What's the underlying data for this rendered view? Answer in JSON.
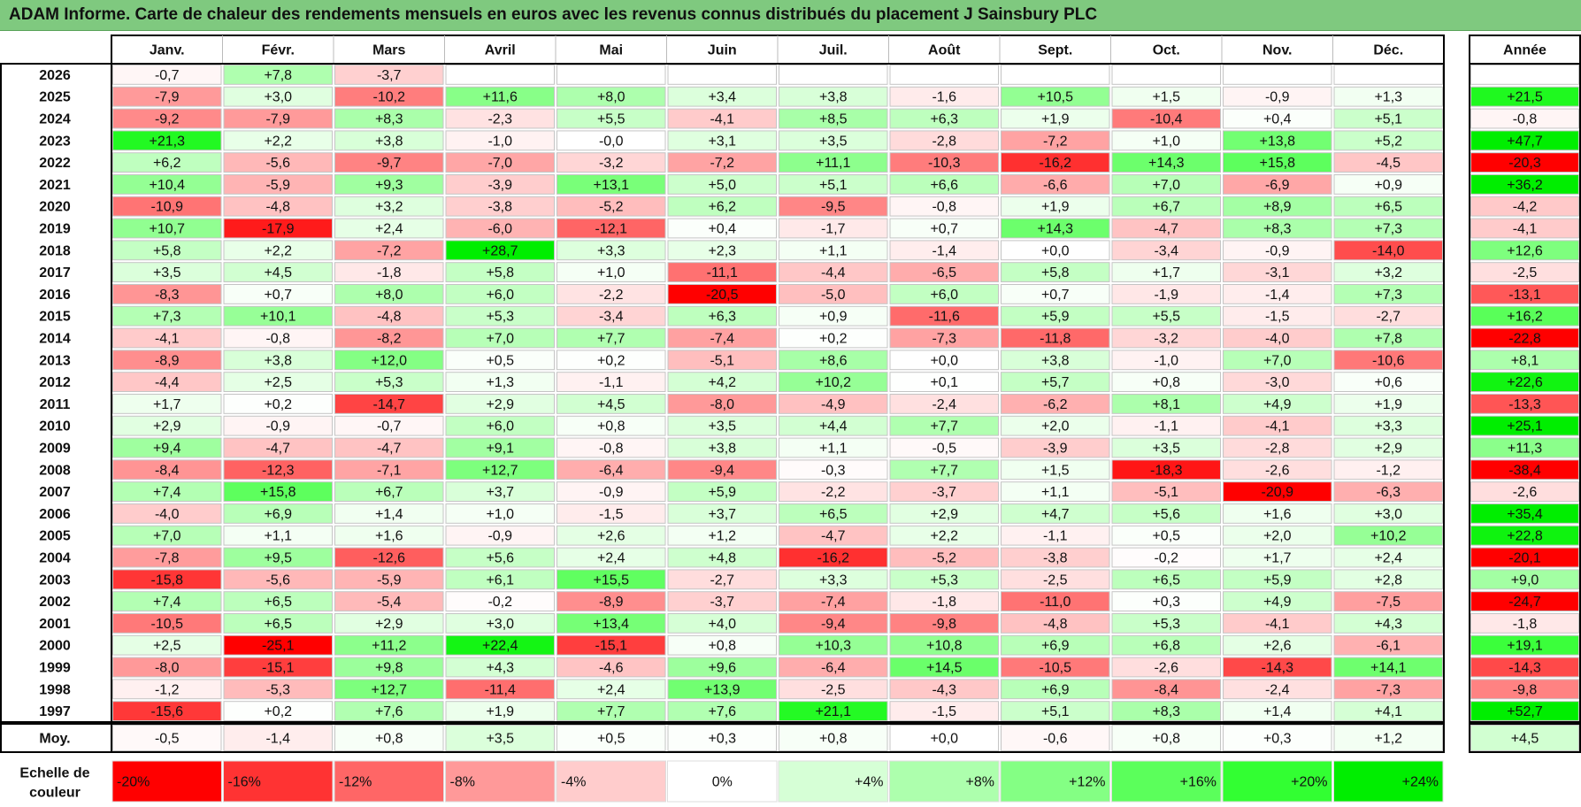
{
  "title": "ADAM Informe. Carte de chaleur des rendements mensuels en euros avec les revenus connus distribués du placement J Sainsbury PLC",
  "chart_data": {
    "type": "heatmap",
    "columns": [
      "Janv.",
      "Févr.",
      "Mars",
      "Avril",
      "Mai",
      "Juin",
      "Juil.",
      "Août",
      "Sept.",
      "Oct.",
      "Nov.",
      "Déc."
    ],
    "year_column": "Année",
    "rows": [
      {
        "year": "2026",
        "values": [
          "-0,7",
          "+7,8",
          "-3,7",
          null,
          null,
          null,
          null,
          null,
          null,
          null,
          null,
          null
        ],
        "annual": null
      },
      {
        "year": "2025",
        "values": [
          "-7,9",
          "+3,0",
          "-10,2",
          "+11,6",
          "+8,0",
          "+3,4",
          "+3,8",
          "-1,6",
          "+10,5",
          "+1,5",
          "-0,9",
          "+1,3"
        ],
        "annual": "+21,5"
      },
      {
        "year": "2024",
        "values": [
          "-9,2",
          "-7,9",
          "+8,3",
          "-2,3",
          "+5,5",
          "-4,1",
          "+8,5",
          "+6,3",
          "+1,9",
          "-10,4",
          "+0,4",
          "+5,1"
        ],
        "annual": "-0,8"
      },
      {
        "year": "2023",
        "values": [
          "+21,3",
          "+2,2",
          "+3,8",
          "-1,0",
          "-0,0",
          "+3,1",
          "+3,5",
          "-2,8",
          "-7,2",
          "+1,0",
          "+13,8",
          "+5,2"
        ],
        "annual": "+47,7"
      },
      {
        "year": "2022",
        "values": [
          "+6,2",
          "-5,6",
          "-9,7",
          "-7,0",
          "-3,2",
          "-7,2",
          "+11,1",
          "-10,3",
          "-16,2",
          "+14,3",
          "+15,8",
          "-4,5"
        ],
        "annual": "-20,3"
      },
      {
        "year": "2021",
        "values": [
          "+10,4",
          "-5,9",
          "+9,3",
          "-3,9",
          "+13,1",
          "+5,0",
          "+5,1",
          "+6,6",
          "-6,6",
          "+7,0",
          "-6,9",
          "+0,9"
        ],
        "annual": "+36,2"
      },
      {
        "year": "2020",
        "values": [
          "-10,9",
          "-4,8",
          "+3,2",
          "-3,8",
          "-5,2",
          "+6,2",
          "-9,5",
          "-0,8",
          "+1,9",
          "+6,7",
          "+8,9",
          "+6,5"
        ],
        "annual": "-4,2"
      },
      {
        "year": "2019",
        "values": [
          "+10,7",
          "-17,9",
          "+2,4",
          "-6,0",
          "-12,1",
          "+0,4",
          "-1,7",
          "+0,7",
          "+14,3",
          "-4,7",
          "+8,3",
          "+7,3"
        ],
        "annual": "-4,1"
      },
      {
        "year": "2018",
        "values": [
          "+5,8",
          "+2,2",
          "-7,2",
          "+28,7",
          "+3,3",
          "+2,3",
          "+1,1",
          "-1,4",
          "+0,0",
          "-3,4",
          "-0,9",
          "-14,0"
        ],
        "annual": "+12,6"
      },
      {
        "year": "2017",
        "values": [
          "+3,5",
          "+4,5",
          "-1,8",
          "+5,8",
          "+1,0",
          "-11,1",
          "-4,4",
          "-6,5",
          "+5,8",
          "+1,7",
          "-3,1",
          "+3,2"
        ],
        "annual": "-2,5"
      },
      {
        "year": "2016",
        "values": [
          "-8,3",
          "+0,7",
          "+8,0",
          "+6,0",
          "-2,2",
          "-20,5",
          "-5,0",
          "+6,0",
          "+0,7",
          "-1,9",
          "-1,4",
          "+7,3"
        ],
        "annual": "-13,1"
      },
      {
        "year": "2015",
        "values": [
          "+7,3",
          "+10,1",
          "-4,8",
          "+5,3",
          "-3,4",
          "+6,3",
          "+0,9",
          "-11,6",
          "+5,9",
          "+5,5",
          "-1,5",
          "-2,7"
        ],
        "annual": "+16,2"
      },
      {
        "year": "2014",
        "values": [
          "-4,1",
          "-0,8",
          "-8,2",
          "+7,0",
          "+7,7",
          "-7,4",
          "+0,2",
          "-7,3",
          "-11,8",
          "-3,2",
          "-4,0",
          "+7,8"
        ],
        "annual": "-22,8"
      },
      {
        "year": "2013",
        "values": [
          "-8,9",
          "+3,8",
          "+12,0",
          "+0,5",
          "+0,2",
          "-5,1",
          "+8,6",
          "+0,0",
          "+3,8",
          "-1,0",
          "+7,0",
          "-10,6"
        ],
        "annual": "+8,1"
      },
      {
        "year": "2012",
        "values": [
          "-4,4",
          "+2,5",
          "+5,3",
          "+1,3",
          "-1,1",
          "+4,2",
          "+10,2",
          "+0,1",
          "+5,7",
          "+0,8",
          "-3,0",
          "+0,6"
        ],
        "annual": "+22,6"
      },
      {
        "year": "2011",
        "values": [
          "+1,7",
          "+0,2",
          "-14,7",
          "+2,9",
          "+4,5",
          "-8,0",
          "-4,9",
          "-2,4",
          "-6,2",
          "+8,1",
          "+4,9",
          "+1,9"
        ],
        "annual": "-13,3"
      },
      {
        "year": "2010",
        "values": [
          "+2,9",
          "-0,9",
          "-0,7",
          "+6,0",
          "+0,8",
          "+3,5",
          "+4,4",
          "+7,7",
          "+2,0",
          "-1,1",
          "-4,1",
          "+3,3"
        ],
        "annual": "+25,1"
      },
      {
        "year": "2009",
        "values": [
          "+9,4",
          "-4,7",
          "-4,7",
          "+9,1",
          "-0,8",
          "+3,8",
          "+1,1",
          "-0,5",
          "-3,9",
          "+3,5",
          "-2,8",
          "+2,9"
        ],
        "annual": "+11,3"
      },
      {
        "year": "2008",
        "values": [
          "-8,4",
          "-12,3",
          "-7,1",
          "+12,7",
          "-6,4",
          "-9,4",
          "-0,3",
          "+7,7",
          "+1,5",
          "-18,3",
          "-2,6",
          "-1,2"
        ],
        "annual": "-38,4"
      },
      {
        "year": "2007",
        "values": [
          "+7,4",
          "+15,8",
          "+6,7",
          "+3,7",
          "-0,9",
          "+5,9",
          "-2,2",
          "-3,7",
          "+1,1",
          "-5,1",
          "-20,9",
          "-6,3"
        ],
        "annual": "-2,6"
      },
      {
        "year": "2006",
        "values": [
          "-4,0",
          "+6,9",
          "+1,4",
          "+1,0",
          "-1,5",
          "+3,7",
          "+6,5",
          "+2,9",
          "+4,7",
          "+5,6",
          "+1,6",
          "+3,0"
        ],
        "annual": "+35,4"
      },
      {
        "year": "2005",
        "values": [
          "+7,0",
          "+1,1",
          "+1,6",
          "-0,9",
          "+2,6",
          "+1,2",
          "-4,7",
          "+2,2",
          "-1,1",
          "+0,5",
          "+2,0",
          "+10,2"
        ],
        "annual": "+22,8"
      },
      {
        "year": "2004",
        "values": [
          "-7,8",
          "+9,5",
          "-12,6",
          "+5,6",
          "+2,4",
          "+4,8",
          "-16,2",
          "-5,2",
          "-3,8",
          "-0,2",
          "+1,7",
          "+2,4"
        ],
        "annual": "-20,1"
      },
      {
        "year": "2003",
        "values": [
          "-15,8",
          "-5,6",
          "-5,9",
          "+6,1",
          "+15,5",
          "-2,7",
          "+3,3",
          "+5,3",
          "-2,5",
          "+6,5",
          "+5,9",
          "+2,8"
        ],
        "annual": "+9,0"
      },
      {
        "year": "2002",
        "values": [
          "+7,4",
          "+6,5",
          "-5,4",
          "-0,2",
          "-8,9",
          "-3,7",
          "-7,4",
          "-1,8",
          "-11,0",
          "+0,3",
          "+4,9",
          "-7,5"
        ],
        "annual": "-24,7"
      },
      {
        "year": "2001",
        "values": [
          "-10,5",
          "+6,5",
          "+2,9",
          "+3,0",
          "+13,4",
          "+4,0",
          "-9,4",
          "-9,8",
          "-4,8",
          "+5,3",
          "-4,1",
          "+4,3"
        ],
        "annual": "-1,8"
      },
      {
        "year": "2000",
        "values": [
          "+2,5",
          "-25,1",
          "+11,2",
          "+22,4",
          "-15,1",
          "+0,8",
          "+10,3",
          "+10,8",
          "+6,9",
          "+6,8",
          "+2,6",
          "-6,1"
        ],
        "annual": "+19,1"
      },
      {
        "year": "1999",
        "values": [
          "-8,0",
          "-15,1",
          "+9,8",
          "+4,3",
          "-4,6",
          "+9,6",
          "-6,4",
          "+14,5",
          "-10,5",
          "-2,6",
          "-14,3",
          "+14,1"
        ],
        "annual": "-14,3"
      },
      {
        "year": "1998",
        "values": [
          "-1,2",
          "-5,3",
          "+12,7",
          "-11,4",
          "+2,4",
          "+13,9",
          "-2,5",
          "-4,3",
          "+6,9",
          "-8,4",
          "-2,4",
          "-7,3"
        ],
        "annual": "-9,8"
      },
      {
        "year": "1997",
        "values": [
          "-15,6",
          "+0,2",
          "+7,6",
          "+1,9",
          "+7,7",
          "+7,6",
          "+21,1",
          "-1,5",
          "+5,1",
          "+8,3",
          "+1,4",
          "+4,1"
        ],
        "annual": "+52,7"
      }
    ],
    "average": {
      "label": "Moy.",
      "values": [
        "-0,5",
        "-1,4",
        "+0,8",
        "+3,5",
        "+0,5",
        "+0,3",
        "+0,8",
        "+0,0",
        "-0,6",
        "+0,8",
        "+0,3",
        "+1,2"
      ],
      "annual": "+4,5"
    },
    "color_scale": {
      "label_line1": "Echelle de",
      "label_line2": "couleur",
      "stops": [
        {
          "label": "-20%",
          "value": -20,
          "color": "#ff0000"
        },
        {
          "label": "-16%",
          "value": -16,
          "color": "#ff3333"
        },
        {
          "label": "-12%",
          "value": -12,
          "color": "#ff6666"
        },
        {
          "label": "-8%",
          "value": -8,
          "color": "#ff9999"
        },
        {
          "label": "-4%",
          "value": -4,
          "color": "#ffcccc"
        },
        {
          "label": "0%",
          "value": 0,
          "color": "#ffffff"
        },
        {
          "label": "+4%",
          "value": 4,
          "color": "#d6ffd6"
        },
        {
          "label": "+8%",
          "value": 8,
          "color": "#adffad"
        },
        {
          "label": "+12%",
          "value": 12,
          "color": "#84ff84"
        },
        {
          "label": "+16%",
          "value": 16,
          "color": "#5bff5b"
        },
        {
          "label": "+20%",
          "value": 20,
          "color": "#32ff32"
        },
        {
          "label": "+24%",
          "value": 24,
          "color": "#00ee00"
        }
      ]
    }
  }
}
